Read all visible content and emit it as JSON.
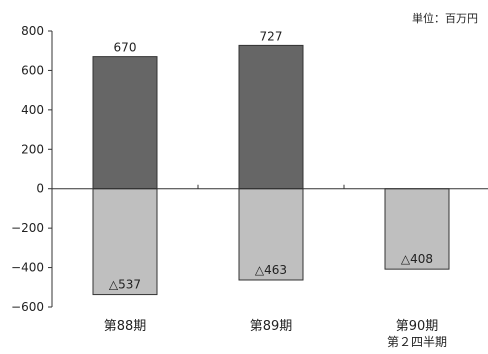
{
  "chart_data": {
    "type": "bar",
    "unit_label": "単位：百万円",
    "categories": [
      "第88期",
      "第89期",
      "第90期"
    ],
    "category_sublabels": [
      "",
      "",
      "第２四半期"
    ],
    "series": [
      {
        "values": [
          670,
          727,
          null
        ],
        "data_labels": [
          "670",
          "727",
          ""
        ],
        "color": "#666666"
      },
      {
        "values": [
          -537,
          -463,
          -408
        ],
        "data_labels": [
          "△537",
          "△463",
          "△408"
        ],
        "color": "#bfbfbf"
      }
    ],
    "ylim": [
      -600,
      800
    ],
    "yticks": [
      800,
      600,
      400,
      200,
      0,
      -200,
      -400,
      -600
    ],
    "ytick_labels": [
      "800",
      "600",
      "400",
      "200",
      "0",
      "−200",
      "−400",
      "−600"
    ],
    "grid": false
  }
}
